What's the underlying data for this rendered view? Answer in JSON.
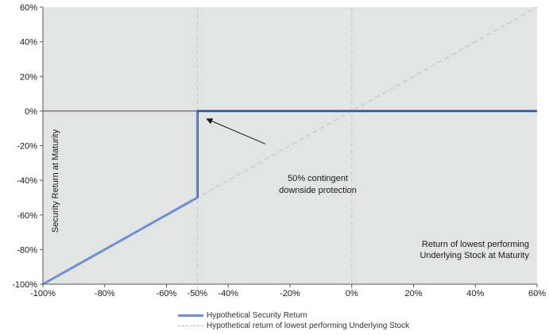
{
  "chart_data": {
    "type": "line",
    "title": "",
    "xlabel": "Return of lowest performing Underlying Stock at Maturity",
    "xlabel_lines": [
      "Return of lowest performing",
      "Underlying Stock at Maturity"
    ],
    "ylabel": "Security Return at Maturity",
    "xlim": [
      -1.0,
      0.6
    ],
    "ylim": [
      -1.0,
      0.6
    ],
    "x_ticks": [
      -1.0,
      -0.8,
      -0.6,
      -0.5,
      -0.4,
      -0.2,
      0.0,
      0.2,
      0.4,
      0.6
    ],
    "x_tick_labels": [
      "-100%",
      "-80%",
      "-60%",
      "-50%",
      "-40%",
      "-20%",
      "0%",
      "20%",
      "40%",
      "60%"
    ],
    "y_ticks": [
      -1.0,
      -0.8,
      -0.6,
      -0.4,
      -0.2,
      0.0,
      0.2,
      0.4,
      0.6
    ],
    "y_tick_labels": [
      "-100%",
      "-80%",
      "-60%",
      "-40%",
      "-20%",
      "0%",
      "20%",
      "40%",
      "60%"
    ],
    "grid": false,
    "background_color": "#e3e5e4",
    "reference_lines": {
      "vertical_dashed_at": [
        -0.5,
        0.0
      ],
      "horizontal_solid_at": 0.0,
      "color": "#c4c4c4"
    },
    "series": [
      {
        "name": "Hypothetical Security Return",
        "style": "solid",
        "color": "#6f8fcf",
        "highlight_color": "#2e4f8a",
        "x": [
          -1.0,
          -0.5,
          -0.5,
          0.6
        ],
        "y": [
          -1.0,
          -0.5,
          0.0,
          0.0
        ]
      },
      {
        "name": "Hypothetical return of lowest performing Underlying Stock",
        "style": "dashed",
        "color": "#c0c0c0",
        "x": [
          -1.0,
          0.6
        ],
        "y": [
          -1.0,
          0.6
        ]
      }
    ],
    "annotations": [
      {
        "text_lines": [
          "50% contingent",
          "downside protection"
        ],
        "arrow_to": [
          -0.49,
          0.0
        ],
        "arrow_from": [
          -0.28,
          -0.19
        ]
      }
    ],
    "legend_position": "bottom"
  }
}
